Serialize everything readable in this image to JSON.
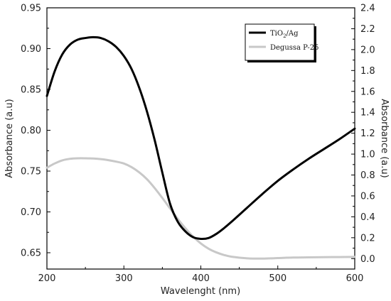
{
  "chart_data": {
    "type": "line",
    "title": "",
    "xlabel": "Wavelenght (nm)",
    "ylabel_left": "Absorbance (a.u)",
    "ylabel_right": "Absorbance (a.u)",
    "xlim": [
      200,
      600
    ],
    "ylim_left": [
      0.63,
      0.95
    ],
    "ylim_right": [
      -0.1,
      2.4
    ],
    "x_ticks": [
      "200",
      "300",
      "400",
      "500",
      "600"
    ],
    "y_left_ticks": [
      "0.65",
      "0.70",
      "0.75",
      "0.80",
      "0.85",
      "0.90",
      "0.95"
    ],
    "y_right_ticks": [
      "0.0",
      "0.2",
      "0.4",
      "0.6",
      "0.8",
      "1.0",
      "1.2",
      "1.4",
      "1.6",
      "1.8",
      "2.0",
      "2.2",
      "2.4"
    ],
    "grid": false,
    "legend_position": "top-right",
    "series": [
      {
        "name": "TiO2/Ag",
        "legend_main": "TiO",
        "legend_sub": "2",
        "legend_rest": "/Ag",
        "axis": "left",
        "color": "#000000",
        "x": [
          200,
          210,
          220,
          230,
          240,
          250,
          260,
          270,
          280,
          290,
          300,
          310,
          320,
          330,
          340,
          350,
          360,
          370,
          380,
          390,
          400,
          410,
          420,
          430,
          440,
          460,
          480,
          500,
          520,
          540,
          560,
          580,
          600
        ],
        "y": [
          0.842,
          0.872,
          0.893,
          0.905,
          0.911,
          0.913,
          0.914,
          0.913,
          0.909,
          0.902,
          0.891,
          0.875,
          0.852,
          0.823,
          0.788,
          0.748,
          0.71,
          0.688,
          0.676,
          0.669,
          0.667,
          0.668,
          0.673,
          0.68,
          0.688,
          0.705,
          0.722,
          0.738,
          0.752,
          0.765,
          0.777,
          0.789,
          0.802
        ]
      },
      {
        "name": "Degussa P-25",
        "legend_main": "Degussa P-25",
        "axis": "right",
        "color": "#c8c8c8",
        "x": [
          200,
          210,
          220,
          230,
          240,
          250,
          260,
          270,
          280,
          290,
          300,
          310,
          320,
          330,
          340,
          350,
          360,
          370,
          380,
          390,
          400,
          410,
          420,
          430,
          440,
          460,
          480,
          500,
          520,
          540,
          560,
          580,
          600
        ],
        "y": [
          0.87,
          0.91,
          0.94,
          0.955,
          0.96,
          0.96,
          0.958,
          0.952,
          0.942,
          0.928,
          0.91,
          0.875,
          0.825,
          0.76,
          0.675,
          0.58,
          0.48,
          0.38,
          0.29,
          0.21,
          0.145,
          0.095,
          0.06,
          0.035,
          0.018,
          0.003,
          0.0,
          0.005,
          0.01,
          0.012,
          0.014,
          0.015,
          0.016
        ]
      }
    ]
  }
}
